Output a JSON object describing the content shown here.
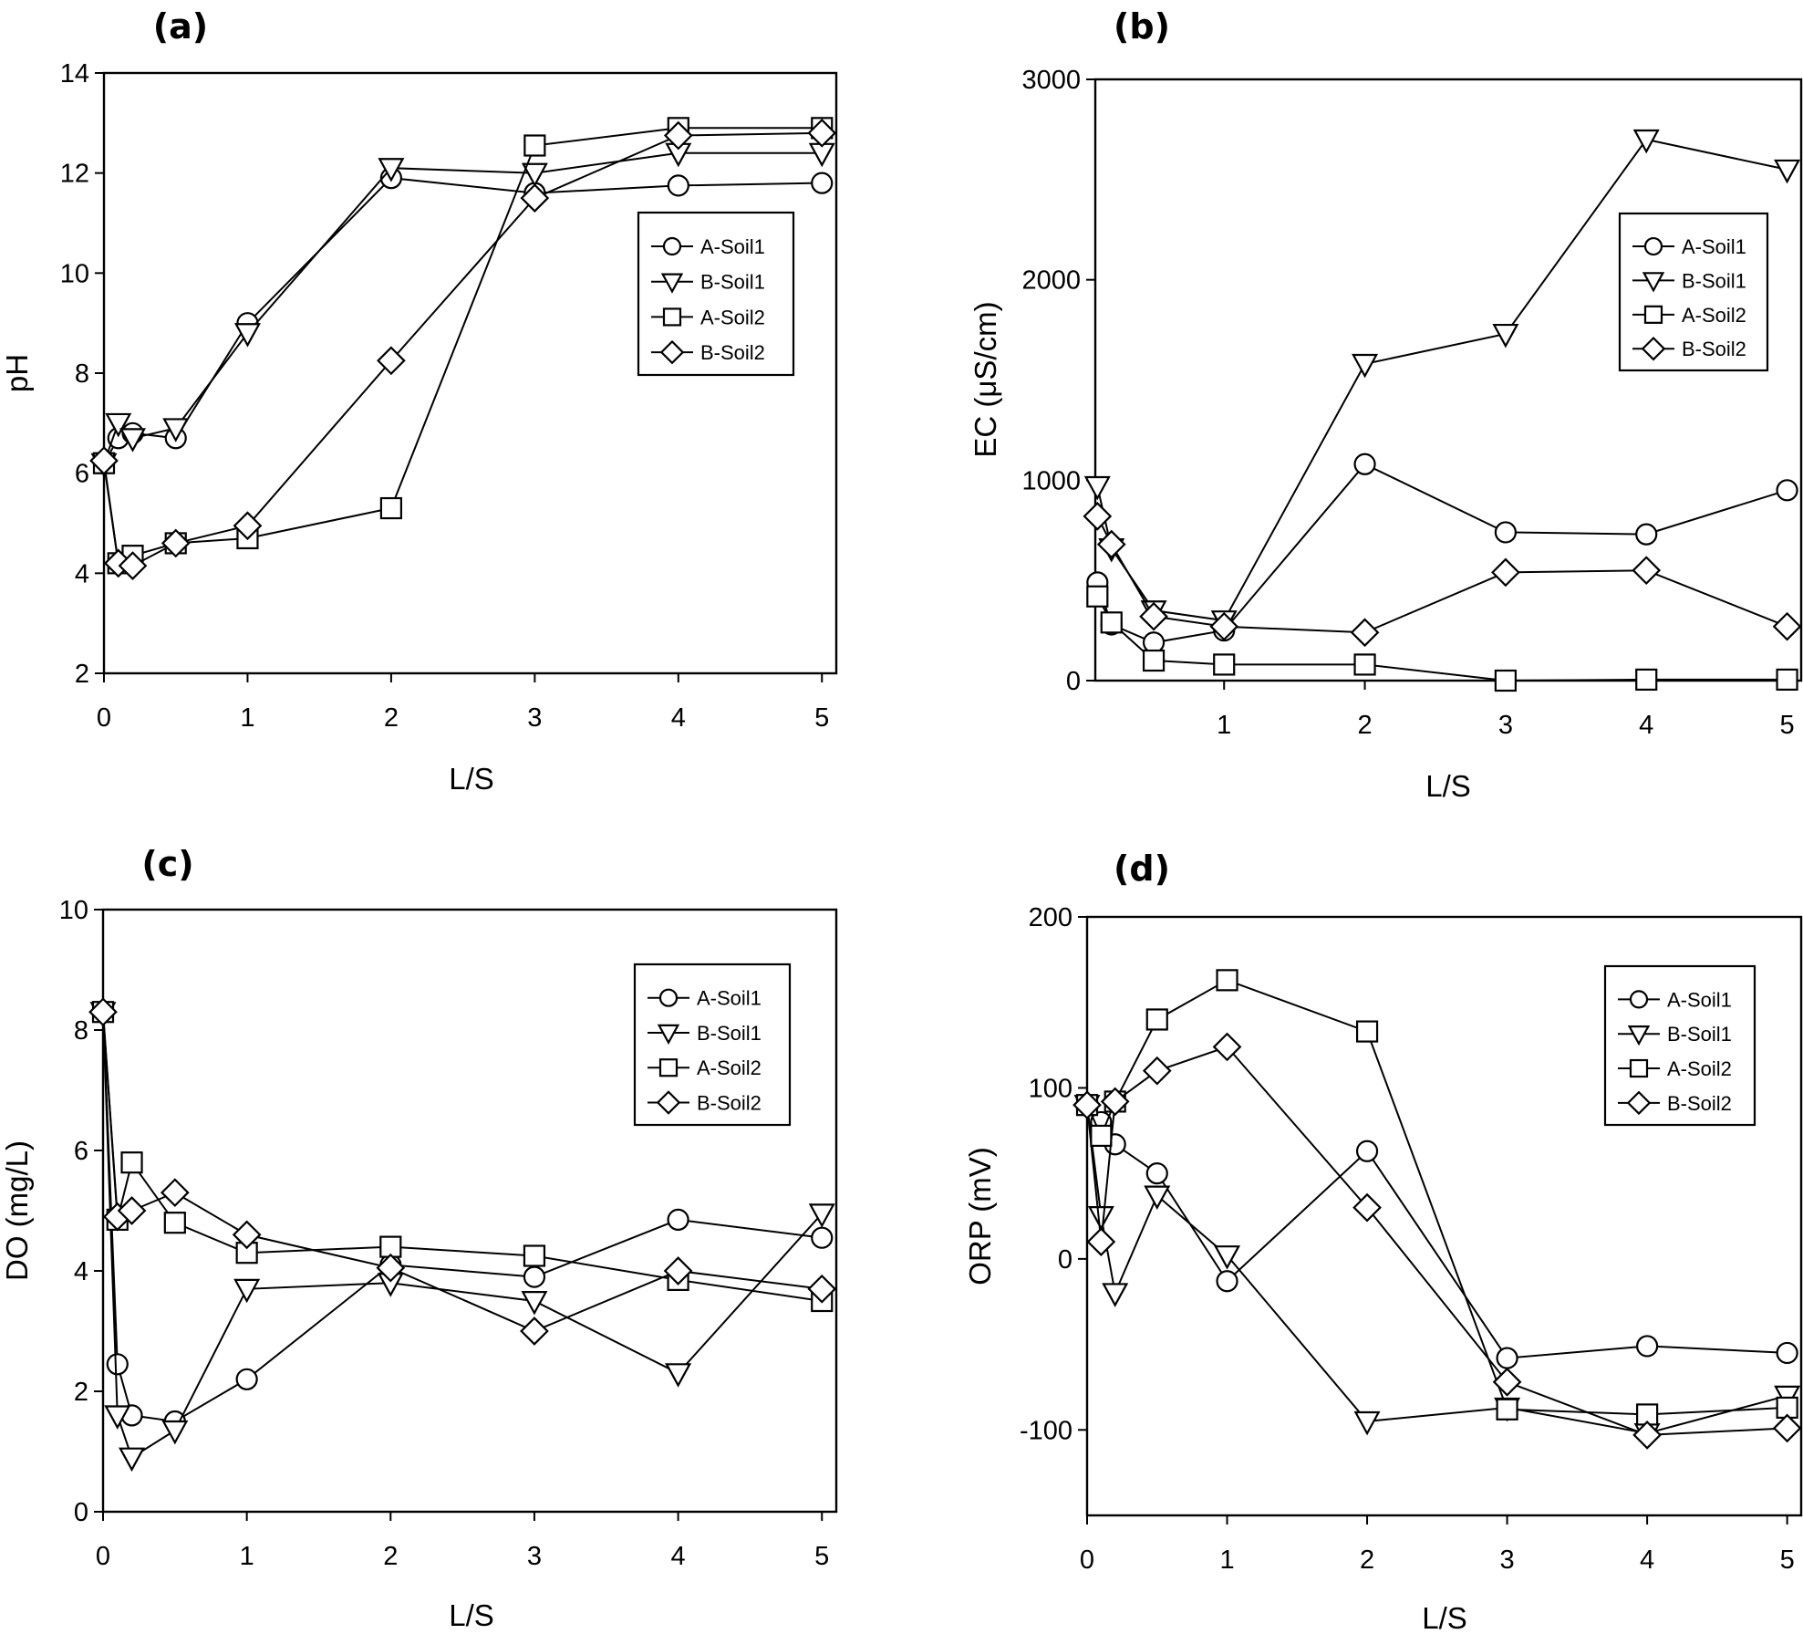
{
  "figure": {
    "panel_titles": [
      "(a)",
      "(b)",
      "(c)",
      "(d)"
    ]
  },
  "colors": {
    "line": "#000000",
    "marker_fill": "#ffffff",
    "background": "#ffffff"
  },
  "chart_data": [
    {
      "type": "line",
      "panel": "(a)",
      "title": "(a)",
      "xlabel": "L/S",
      "ylabel": "pH",
      "xlim": [
        0,
        5.1
      ],
      "ylim": [
        2,
        14
      ],
      "xticks": [
        0,
        1,
        2,
        3,
        4,
        5
      ],
      "xtick_labels": [
        "0",
        "1",
        "2",
        "3",
        "4",
        "5"
      ],
      "yticks": [
        2,
        4,
        6,
        8,
        10,
        12,
        14
      ],
      "ytick_labels": [
        "2",
        "4",
        "6",
        "8",
        "10",
        "12",
        "14"
      ],
      "grid": false,
      "legend": "upper-right",
      "x": [
        0,
        0.1,
        0.2,
        0.5,
        1,
        2,
        3,
        4,
        5
      ],
      "series": [
        {
          "name": "A-Soil1",
          "marker": "circle",
          "values": [
            6.2,
            6.7,
            6.8,
            6.7,
            9.0,
            11.9,
            11.6,
            11.75,
            11.8
          ]
        },
        {
          "name": "B-Soil1",
          "marker": "triangle-down",
          "values": [
            6.2,
            7.0,
            6.7,
            6.9,
            8.8,
            12.1,
            12.0,
            12.4,
            12.4
          ]
        },
        {
          "name": "A-Soil2",
          "marker": "square",
          "values": [
            6.2,
            4.2,
            4.35,
            4.6,
            4.7,
            5.3,
            12.55,
            12.9,
            12.9
          ]
        },
        {
          "name": "B-Soil2",
          "marker": "diamond",
          "values": [
            6.25,
            4.2,
            4.15,
            4.6,
            4.95,
            8.25,
            11.5,
            12.75,
            12.8
          ]
        }
      ]
    },
    {
      "type": "line",
      "panel": "(b)",
      "title": "(b)",
      "xlabel": "L/S",
      "ylabel": "EC (μS/cm)",
      "xlim": [
        0.085,
        5.1
      ],
      "ylim": [
        0,
        3000
      ],
      "xticks": [
        1,
        2,
        3,
        4,
        5
      ],
      "xtick_labels": [
        "1",
        "2",
        "3",
        "4",
        "5"
      ],
      "yticks": [
        0,
        1000,
        2000,
        3000
      ],
      "ytick_labels": [
        "0",
        "1000",
        "2000",
        "3000"
      ],
      "grid": false,
      "legend": "upper-right",
      "x": [
        0.1,
        0.2,
        0.5,
        1,
        2,
        3,
        4,
        5
      ],
      "series": [
        {
          "name": "A-Soil1",
          "marker": "circle",
          "values": [
            490,
            280,
            190,
            250,
            1080,
            740,
            730,
            950
          ]
        },
        {
          "name": "B-Soil1",
          "marker": "triangle-down",
          "values": [
            970,
            660,
            350,
            300,
            1580,
            1730,
            2700,
            2550
          ]
        },
        {
          "name": "A-Soil2",
          "marker": "square",
          "values": [
            420,
            290,
            100,
            80,
            80,
            0,
            5,
            5
          ]
        },
        {
          "name": "B-Soil2",
          "marker": "diamond",
          "values": [
            820,
            680,
            320,
            270,
            240,
            540,
            550,
            270
          ]
        }
      ]
    },
    {
      "type": "line",
      "panel": "(c)",
      "title": "(c)",
      "xlabel": "L/S",
      "ylabel": "DO (mg/L)",
      "xlim": [
        0,
        5.1
      ],
      "ylim": [
        0,
        10
      ],
      "xticks": [
        0,
        1,
        2,
        3,
        4,
        5
      ],
      "xtick_labels": [
        "0",
        "1",
        "2",
        "3",
        "4",
        "5"
      ],
      "yticks": [
        0,
        2,
        4,
        6,
        8,
        10
      ],
      "ytick_labels": [
        "0",
        "2",
        "4",
        "6",
        "8",
        "10"
      ],
      "grid": false,
      "legend": "upper-right",
      "x": [
        0,
        0.1,
        0.2,
        0.5,
        1,
        2,
        3,
        4,
        5
      ],
      "series": [
        {
          "name": "A-Soil1",
          "marker": "circle",
          "values": [
            8.3,
            2.45,
            1.6,
            1.5,
            2.2,
            4.1,
            3.9,
            4.85,
            4.55
          ]
        },
        {
          "name": "B-Soil1",
          "marker": "triangle-down",
          "values": [
            8.3,
            1.6,
            0.9,
            1.35,
            3.7,
            3.8,
            3.5,
            2.3,
            4.95
          ]
        },
        {
          "name": "A-Soil2",
          "marker": "square",
          "values": [
            8.3,
            4.85,
            5.8,
            4.8,
            4.3,
            4.4,
            4.25,
            3.85,
            3.5
          ]
        },
        {
          "name": "B-Soil2",
          "marker": "diamond",
          "values": [
            8.3,
            4.9,
            5.0,
            5.3,
            4.6,
            4.05,
            3.0,
            4.0,
            3.7
          ]
        }
      ]
    },
    {
      "type": "line",
      "panel": "(d)",
      "title": "(d)",
      "xlabel": "L/S",
      "ylabel": "ORP (mV)",
      "xlim": [
        0,
        5.1
      ],
      "ylim": [
        -150,
        200
      ],
      "xticks": [
        0,
        1,
        2,
        3,
        4,
        5
      ],
      "xtick_labels": [
        "0",
        "1",
        "2",
        "3",
        "4",
        "5"
      ],
      "yticks": [
        -100,
        0,
        100,
        200
      ],
      "ytick_labels": [
        "-100",
        "0",
        "100",
        "200"
      ],
      "grid": false,
      "legend": "upper-right",
      "x": [
        0,
        0.1,
        0.2,
        0.5,
        1,
        2,
        3,
        4,
        5
      ],
      "series": [
        {
          "name": "A-Soil1",
          "marker": "circle",
          "values": [
            90,
            80,
            67,
            50,
            -13,
            63,
            -58,
            -51,
            -55
          ]
        },
        {
          "name": "B-Soil1",
          "marker": "triangle-down",
          "values": [
            90,
            25,
            -20,
            37,
            2,
            -95,
            -87,
            -102,
            -80
          ]
        },
        {
          "name": "A-Soil2",
          "marker": "square",
          "values": [
            90,
            72,
            92,
            140,
            163,
            133,
            -88,
            -91,
            -87
          ]
        },
        {
          "name": "B-Soil2",
          "marker": "diamond",
          "values": [
            90,
            10,
            92,
            110,
            124,
            30,
            -72,
            -103,
            -99
          ]
        }
      ]
    }
  ]
}
